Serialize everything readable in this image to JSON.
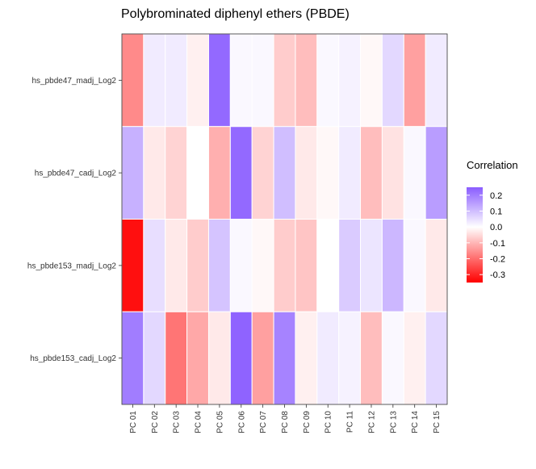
{
  "chart_data": {
    "type": "heatmap",
    "title": "Polybrominated diphenyl ethers (PBDE)",
    "xlabel": "",
    "ylabel": "",
    "x_categories": [
      "PC 01",
      "PC 02",
      "PC 03",
      "PC 04",
      "PC 05",
      "PC 06",
      "PC 07",
      "PC 08",
      "PC 09",
      "PC 10",
      "PC 11",
      "PC 12",
      "PC 13",
      "PC 14",
      "PC 15"
    ],
    "y_categories": [
      "hs_pbde47_madj_Log2",
      "hs_pbde47_cadj_Log2",
      "hs_pbde153_madj_Log2",
      "hs_pbde153_cadj_Log2"
    ],
    "values": [
      [
        -0.16,
        0.03,
        0.03,
        -0.02,
        0.23,
        0.01,
        0.01,
        -0.07,
        -0.09,
        0.01,
        0.02,
        -0.01,
        0.06,
        -0.13,
        0.03
      ],
      [
        0.12,
        -0.03,
        -0.06,
        0.0,
        -0.11,
        0.23,
        -0.06,
        0.1,
        -0.03,
        -0.01,
        0.03,
        -0.09,
        -0.04,
        0.01,
        0.15
      ],
      [
        -0.33,
        0.05,
        -0.03,
        -0.07,
        0.09,
        0.01,
        -0.01,
        -0.07,
        -0.08,
        0.0,
        0.08,
        0.04,
        0.11,
        0.01,
        -0.03
      ],
      [
        0.2,
        0.06,
        -0.19,
        -0.12,
        -0.03,
        0.24,
        -0.13,
        0.19,
        -0.02,
        0.03,
        0.02,
        -0.09,
        0.01,
        -0.02,
        0.06
      ]
    ],
    "legend": {
      "title": "Correlation",
      "position": "right",
      "ticks": [
        0.2,
        0.1,
        0.0,
        -0.1,
        -0.2,
        -0.3
      ],
      "tick_labels": [
        "0.2",
        "0.1",
        "0.0",
        "-0.1",
        "-0.2",
        "-0.3"
      ],
      "range": [
        -0.35,
        0.25
      ]
    },
    "colors": {
      "low": "#ff0000",
      "mid": "#ffffff",
      "high": "#8a5cff"
    },
    "grid": true
  }
}
